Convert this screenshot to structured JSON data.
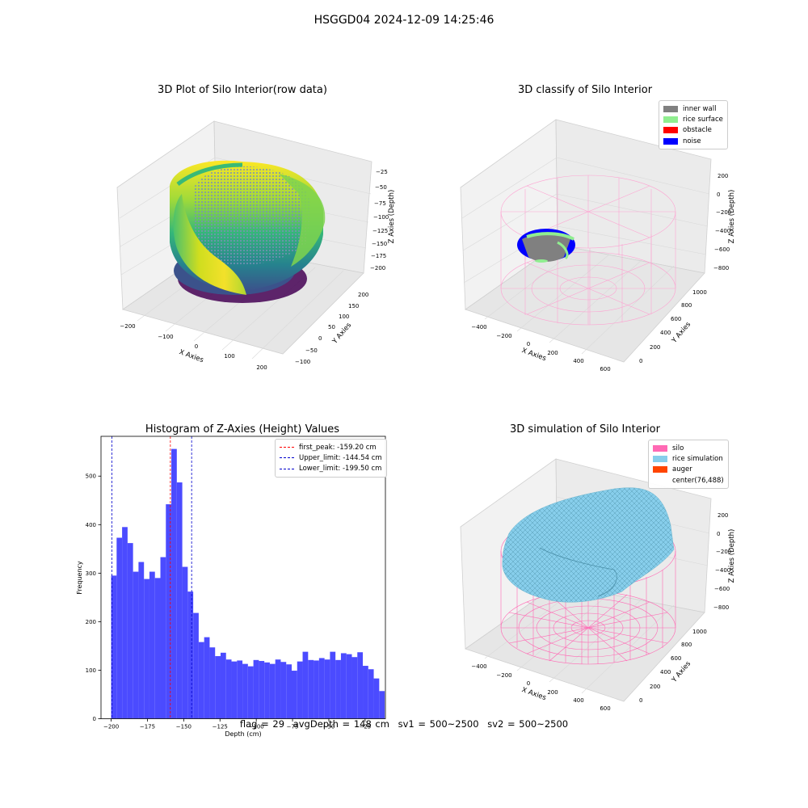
{
  "suptitle": "HSGGD04 2024-12-09 14:25:46",
  "footer": {
    "flag": "flag = 29",
    "avg": "avgDepth = 148 cm",
    "sv1": "sv1 = 500~2500",
    "sv2": "sv2 = 500~2500"
  },
  "colors": {
    "hist_bar": "#4b4bff",
    "peak_line": "#ff0000",
    "limit_line": "#0000cc",
    "inner_wall": "#808080",
    "rice_surface": "#90ee90",
    "obstacle": "#ff0000",
    "noise": "#0000ff",
    "silo": "#ff69b4",
    "rice_simulation": "#87ceeb",
    "auger": "#ff4500"
  },
  "chart_data": [
    {
      "type": "scatter",
      "title": "3D Plot of Silo Interior(row data)",
      "xlabel": "X Axies",
      "ylabel": "Y Axies",
      "zlabel": "Z Axies (Depth)",
      "x_ticks": [
        "−200",
        "−100",
        "0",
        "100",
        "200"
      ],
      "y_ticks": [
        "−100",
        "−50",
        "0",
        "50",
        "100",
        "150",
        "200"
      ],
      "z_ticks": [
        "−25",
        "−50",
        "−75",
        "−100",
        "−125",
        "−150",
        "−175",
        "−200"
      ],
      "colormap": "viridis"
    },
    {
      "type": "scatter",
      "title": "3D classify of Silo Interior",
      "xlabel": "X Axies",
      "ylabel": "Y Axies",
      "zlabel": "Z Axies (Depth)",
      "x_ticks": [
        "−400",
        "−200",
        "0",
        "200",
        "400",
        "600"
      ],
      "y_ticks": [
        "0",
        "200",
        "400",
        "600",
        "800",
        "1000"
      ],
      "z_ticks": [
        "200",
        "0",
        "−200",
        "−400",
        "−600",
        "−800"
      ],
      "legend": [
        "inner wall",
        "rice surface",
        "obstacle",
        "noise"
      ]
    },
    {
      "type": "bar",
      "title": "Histogram of Z-Axies (Height) Values",
      "xlabel": "Depth (cm)",
      "ylabel": "Frequency",
      "xlim": [
        -207,
        -11
      ],
      "ylim": [
        0,
        582
      ],
      "x_ticks": [
        -200,
        -175,
        -150,
        -125,
        -100,
        -75,
        -50,
        -25
      ],
      "x_tick_labels": [
        "−200",
        "−175",
        "−150",
        "−125",
        "−100",
        "−75",
        "−50",
        "−25"
      ],
      "y_ticks": [
        0,
        100,
        200,
        300,
        400,
        500
      ],
      "bin_start": -200,
      "bin_width": 3.77,
      "values": [
        295,
        373,
        395,
        362,
        303,
        323,
        288,
        303,
        290,
        333,
        442,
        556,
        487,
        313,
        262,
        218,
        158,
        168,
        147,
        129,
        136,
        122,
        118,
        120,
        113,
        108,
        121,
        119,
        116,
        113,
        122,
        117,
        112,
        99,
        118,
        138,
        121,
        120,
        125,
        122,
        138,
        121,
        135,
        133,
        127,
        137,
        109,
        102,
        83,
        57
      ],
      "lines": [
        {
          "name": "first_peak: -159.20 cm",
          "x": -159.2,
          "color": "#ff0000"
        },
        {
          "name": "Upper_limit: -144.54 cm",
          "x": -144.54,
          "color": "#0000cc"
        },
        {
          "name": "Lower_limit: -199.50 cm",
          "x": -199.5,
          "color": "#0000cc"
        }
      ]
    },
    {
      "type": "area",
      "title": "3D simulation of Silo Interior",
      "xlabel": "X Axies",
      "ylabel": "Y Axies",
      "zlabel": "Z Axies (Depth)",
      "x_ticks": [
        "−400",
        "−200",
        "0",
        "200",
        "400",
        "600"
      ],
      "y_ticks": [
        "0",
        "200",
        "400",
        "600",
        "800",
        "1000"
      ],
      "z_ticks": [
        "200",
        "0",
        "−200",
        "−400",
        "−600",
        "−800"
      ],
      "legend": [
        "silo",
        "rice simulation",
        "auger",
        "center(76,488)"
      ]
    }
  ]
}
